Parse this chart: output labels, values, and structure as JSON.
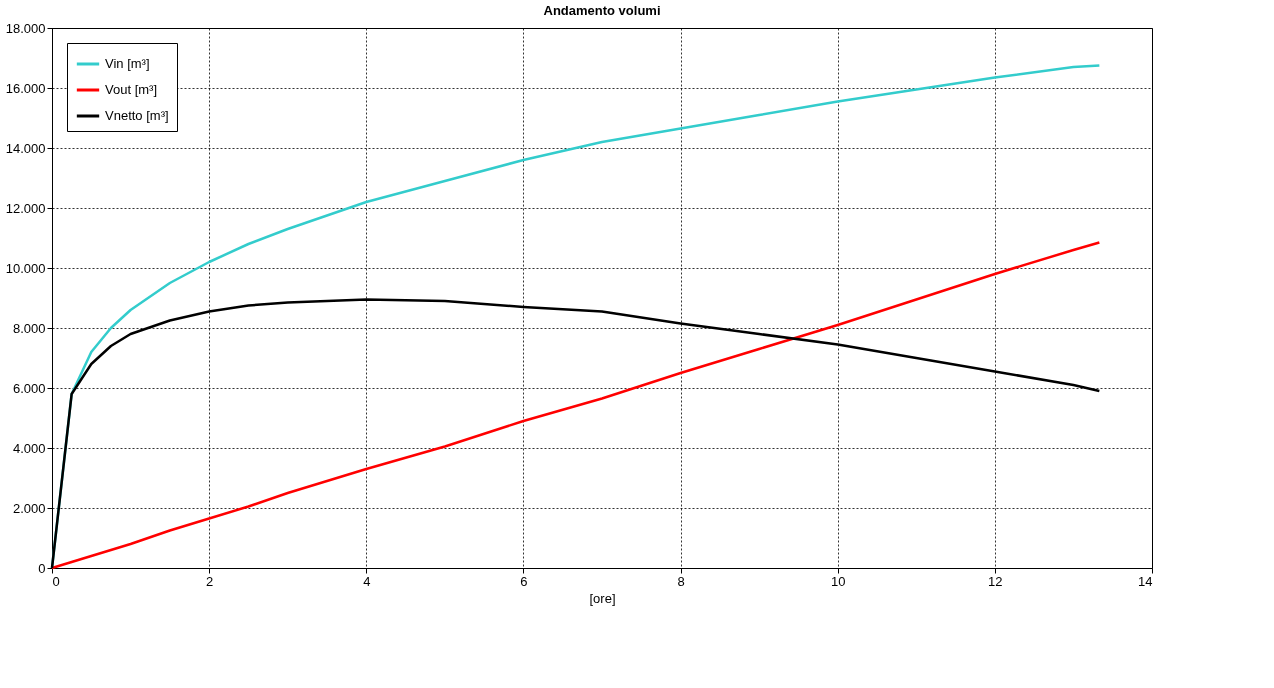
{
  "chart_data": {
    "type": "line",
    "title": "Andamento volumi",
    "xlabel": "[ore]",
    "x": [
      0,
      0.25,
      0.5,
      0.75,
      1,
      1.5,
      2,
      2.5,
      3,
      4,
      5,
      6,
      7,
      8,
      9,
      10,
      11,
      12,
      13,
      13.33
    ],
    "series": [
      {
        "name": "Vin [m³]",
        "color": "#33cccc",
        "values": [
          0,
          5800,
          7200,
          8000,
          8600,
          9500,
          10200,
          10800,
          11300,
          12200,
          12900,
          13600,
          14200,
          14650,
          15100,
          15550,
          15950,
          16350,
          16700,
          16750
        ]
      },
      {
        "name": "Vout [m³]",
        "color": "#ff0000",
        "values": [
          0,
          200,
          400,
          600,
          800,
          1250,
          1650,
          2050,
          2500,
          3300,
          4050,
          4900,
          5650,
          6500,
          7300,
          8100,
          8950,
          9800,
          10600,
          10850
        ]
      },
      {
        "name": "Vnetto [m³]",
        "color": "#000000",
        "values": [
          0,
          5800,
          6800,
          7400,
          7800,
          8250,
          8550,
          8750,
          8850,
          8950,
          8900,
          8700,
          8550,
          8150,
          7800,
          7450,
          7000,
          6550,
          6100,
          5900
        ]
      }
    ],
    "xlim": [
      0,
      14
    ],
    "xticks": [
      0,
      2,
      4,
      6,
      8,
      10,
      12,
      14
    ],
    "ylim": [
      0,
      18000
    ],
    "yticks": [
      0,
      {
        "value": 2000,
        "label": "2.000"
      },
      {
        "value": 4000,
        "label": "4.000"
      },
      {
        "value": 6000,
        "label": "6.000"
      },
      {
        "value": 8000,
        "label": "8.000"
      },
      {
        "value": 10000,
        "label": "10.000"
      },
      {
        "value": 12000,
        "label": "12.000"
      },
      {
        "value": 14000,
        "label": "14.000"
      },
      {
        "value": 16000,
        "label": "16.000"
      },
      {
        "value": 18000,
        "label": "18.000"
      }
    ],
    "grid": true,
    "legend": "top left",
    "marker": "none",
    "line_style": "solid"
  }
}
